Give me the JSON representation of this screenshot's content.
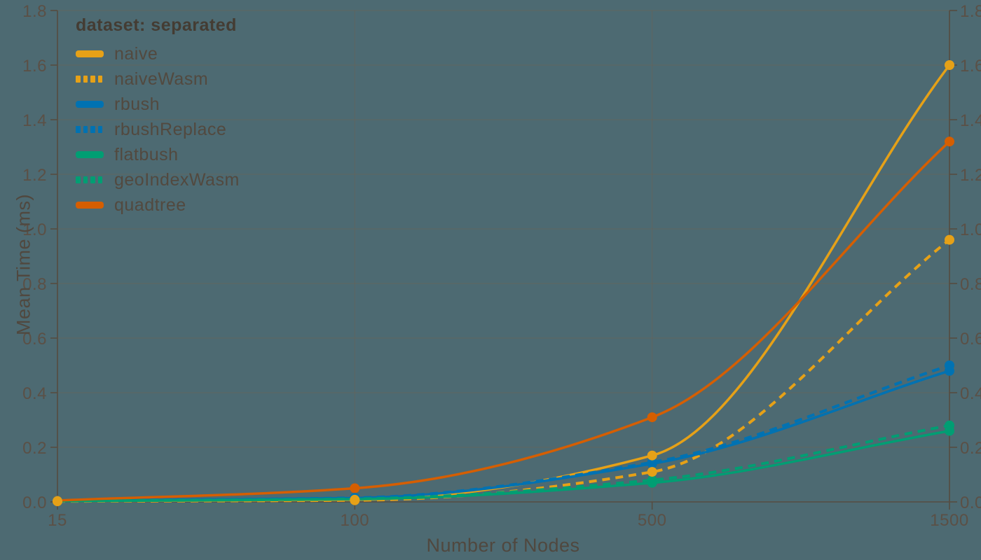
{
  "theme": {
    "background": "#4D6A72",
    "tick_text": "#5B5046",
    "axis_title_text": "#50483F",
    "legend_text": "#52493F",
    "legend_title_text": "#443C33",
    "grid_line": "#6E6152",
    "axis_line": "#564C41"
  },
  "chart_data": {
    "type": "line",
    "legend_title": "dataset: separated",
    "xlabel": "Number of Nodes",
    "ylabel": "Mean Time (ms)",
    "categories": [
      "15",
      "100",
      "500",
      "1500"
    ],
    "ylim": [
      0,
      1.8
    ],
    "y_ticks": [
      "0.0",
      "0.2",
      "0.4",
      "0.6",
      "0.8",
      "1.0",
      "1.2",
      "1.4",
      "1.6",
      "1.8"
    ],
    "grid": true,
    "legend_position": "top-left",
    "y_axis_mirrored_right": true,
    "line_interpolation": "monotone",
    "series": [
      {
        "name": "naive",
        "color": "#E6A117",
        "style": "solid",
        "values": [
          0.003,
          0.008,
          0.17,
          1.6
        ]
      },
      {
        "name": "naiveWasm",
        "color": "#E6A117",
        "style": "dashed",
        "values": [
          0.002,
          0.006,
          0.11,
          0.96
        ]
      },
      {
        "name": "rbush",
        "color": "#0072B2",
        "style": "solid",
        "values": [
          0.004,
          0.014,
          0.14,
          0.48
        ]
      },
      {
        "name": "rbushReplace",
        "color": "#0072B2",
        "style": "dashed",
        "values": [
          0.004,
          0.015,
          0.145,
          0.5
        ]
      },
      {
        "name": "flatbush",
        "color": "#009E73",
        "style": "solid",
        "values": [
          0.003,
          0.01,
          0.07,
          0.26
        ]
      },
      {
        "name": "geoIndexWasm",
        "color": "#009E73",
        "style": "dashed",
        "values": [
          0.003,
          0.011,
          0.08,
          0.28
        ]
      },
      {
        "name": "quadtree",
        "color": "#D55E00",
        "style": "solid",
        "values": [
          0.005,
          0.05,
          0.31,
          1.32
        ]
      }
    ]
  }
}
